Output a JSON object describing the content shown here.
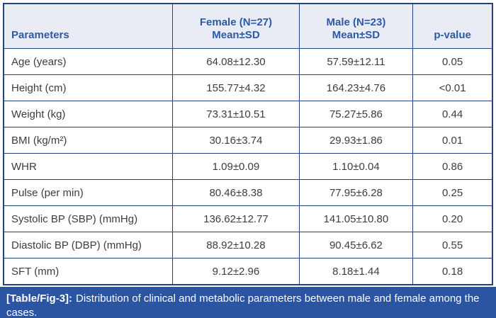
{
  "colors": {
    "header_background": "#eaecf5",
    "header_text": "#2b5aa9",
    "table_border": "#24427e",
    "body_text": "#3d3d3d",
    "caption_background": "#2b54a3",
    "caption_text": "#ffffff"
  },
  "table": {
    "columns": [
      {
        "label": "Parameters",
        "sublabel": ""
      },
      {
        "label": "Female (N=27)",
        "sublabel": "Mean±SD"
      },
      {
        "label": "Male (N=23)",
        "sublabel": "Mean±SD"
      },
      {
        "label": "p-value",
        "sublabel": ""
      }
    ],
    "rows": [
      {
        "parameter": "Age (years)",
        "female": "64.08±12.30",
        "male": "57.59±12.11",
        "p": "0.05"
      },
      {
        "parameter": "Height (cm)",
        "female": "155.77±4.32",
        "male": "164.23±4.76",
        "p": "<0.01"
      },
      {
        "parameter": "Weight (kg)",
        "female": "73.31±10.51",
        "male": "75.27±5.86",
        "p": "0.44"
      },
      {
        "parameter": "BMI (kg/m²)",
        "female": "30.16±3.74",
        "male": "29.93±1.86",
        "p": "0.01"
      },
      {
        "parameter": "WHR",
        "female": "1.09±0.09",
        "male": "1.10±0.04",
        "p": "0.86"
      },
      {
        "parameter": "Pulse (per min)",
        "female": "80.46±8.38",
        "male": "77.95±6.28",
        "p": "0.25"
      },
      {
        "parameter": "Systolic BP (SBP) (mmHg)",
        "female": "136.62±12.77",
        "male": "141.05±10.80",
        "p": "0.20"
      },
      {
        "parameter": "Diastolic BP (DBP) (mmHg)",
        "female": "88.92±10.28",
        "male": "90.45±6.62",
        "p": "0.55"
      },
      {
        "parameter": "SFT (mm)",
        "female": "9.12±2.96",
        "male": "8.18±1.44",
        "p": "0.18"
      }
    ]
  },
  "caption": {
    "label": "[Table/Fig-3]:",
    "text": "Distribution of clinical and metabolic parameters between male and female among the cases."
  },
  "chart_data": {
    "type": "table",
    "title": "[Table/Fig-3]: Distribution of clinical and metabolic parameters between male and female among the cases.",
    "columns": [
      "Parameters",
      "Female (N=27) Mean±SD",
      "Male (N=23) Mean±SD",
      "p-value"
    ],
    "rows": [
      [
        "Age (years)",
        "64.08±12.30",
        "57.59±12.11",
        "0.05"
      ],
      [
        "Height (cm)",
        "155.77±4.32",
        "164.23±4.76",
        "<0.01"
      ],
      [
        "Weight (kg)",
        "73.31±10.51",
        "75.27±5.86",
        "0.44"
      ],
      [
        "BMI (kg/m²)",
        "30.16±3.74",
        "29.93±1.86",
        "0.01"
      ],
      [
        "WHR",
        "1.09±0.09",
        "1.10±0.04",
        "0.86"
      ],
      [
        "Pulse (per min)",
        "80.46±8.38",
        "77.95±6.28",
        "0.25"
      ],
      [
        "Systolic BP (SBP) (mmHg)",
        "136.62±12.77",
        "141.05±10.80",
        "0.20"
      ],
      [
        "Diastolic BP (DBP) (mmHg)",
        "88.92±10.28",
        "90.45±6.62",
        "0.55"
      ],
      [
        "SFT (mm)",
        "9.12±2.96",
        "8.18±1.44",
        "0.18"
      ]
    ]
  }
}
